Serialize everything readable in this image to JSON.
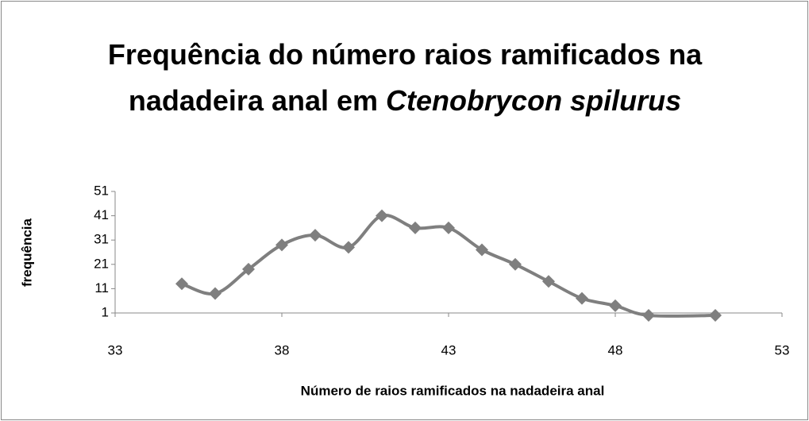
{
  "chart_data": {
    "type": "line",
    "title": [
      "Frequência do número raios ramificados na nadadeira anal em",
      "Ctenobrycon spilurus"
    ],
    "xlabel": "Número de raios ramificados na nadadeira anal",
    "ylabel": "frequência",
    "x": [
      35,
      36,
      37,
      38,
      39,
      40,
      41,
      42,
      43,
      44,
      45,
      46,
      47,
      48,
      49,
      51
    ],
    "series": [
      {
        "color": "#7f7f7f",
        "values": [
          13,
          9,
          19,
          29,
          33,
          28,
          41,
          36,
          36,
          27,
          21,
          14,
          7,
          4,
          0,
          0
        ]
      }
    ],
    "xlim": [
      33,
      53
    ],
    "xticks": [
      33,
      38,
      43,
      48,
      53
    ],
    "ylim": [
      1,
      51
    ],
    "yticks": [
      1,
      11,
      21,
      31,
      41,
      51
    ],
    "grid": false,
    "smooth": true
  }
}
